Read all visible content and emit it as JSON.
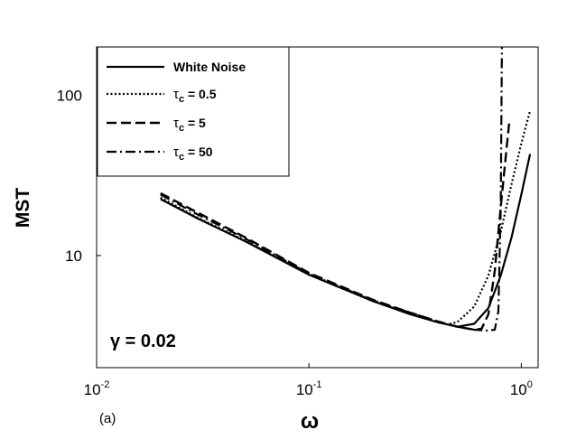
{
  "chart_data": {
    "type": "line",
    "xlabel": "ω",
    "ylabel": "MST",
    "xscale": "log",
    "yscale": "log",
    "xlim": [
      0.01,
      1.2
    ],
    "ylim": [
      2,
      200
    ],
    "x_ticks": [
      {
        "value": 0.01,
        "base": "10",
        "exp": "-2"
      },
      {
        "value": 0.1,
        "base": "10",
        "exp": "-1"
      },
      {
        "value": 1,
        "base": "10",
        "exp": "0"
      }
    ],
    "y_ticks": [
      {
        "value": 10,
        "label": "10"
      },
      {
        "value": 100,
        "label": "100"
      }
    ],
    "grid": false,
    "legend_position": "top-left",
    "annotation": "γ = 0.02",
    "panel_label": "(a)",
    "series": [
      {
        "legend": "White Noise",
        "style": "solid",
        "points": [
          [
            0.02,
            22.5
          ],
          [
            0.03,
            17
          ],
          [
            0.05,
            12.3
          ],
          [
            0.1,
            7.6
          ],
          [
            0.2,
            5.2
          ],
          [
            0.3,
            4.3
          ],
          [
            0.4,
            3.85
          ],
          [
            0.5,
            3.6
          ],
          [
            0.6,
            3.75
          ],
          [
            0.7,
            4.7
          ],
          [
            0.8,
            7.5
          ],
          [
            0.9,
            13
          ],
          [
            1.0,
            24
          ],
          [
            1.1,
            43
          ]
        ]
      },
      {
        "legend_symbol": "τ",
        "legend_sub": "c",
        "legend_rest": " = 0.5",
        "style": "dotted",
        "points": [
          [
            0.02,
            23
          ],
          [
            0.03,
            17.2
          ],
          [
            0.05,
            12.4
          ],
          [
            0.1,
            7.6
          ],
          [
            0.2,
            5.2
          ],
          [
            0.3,
            4.35
          ],
          [
            0.4,
            3.85
          ],
          [
            0.45,
            3.72
          ],
          [
            0.5,
            3.85
          ],
          [
            0.6,
            4.8
          ],
          [
            0.7,
            7.5
          ],
          [
            0.8,
            14
          ],
          [
            0.9,
            28
          ],
          [
            1.0,
            50
          ],
          [
            1.1,
            80
          ]
        ]
      },
      {
        "legend_symbol": "τ",
        "legend_sub": "c",
        "legend_rest": " = 5",
        "style": "dashed",
        "points": [
          [
            0.02,
            24.5
          ],
          [
            0.03,
            18.5
          ],
          [
            0.05,
            13
          ],
          [
            0.1,
            7.8
          ],
          [
            0.2,
            5.3
          ],
          [
            0.3,
            4.4
          ],
          [
            0.4,
            3.9
          ],
          [
            0.5,
            3.6
          ],
          [
            0.6,
            3.45
          ],
          [
            0.65,
            3.5
          ],
          [
            0.7,
            4.3
          ],
          [
            0.75,
            8
          ],
          [
            0.8,
            20
          ],
          [
            0.85,
            45
          ],
          [
            0.88,
            70
          ]
        ]
      },
      {
        "legend_symbol": "τ",
        "legend_sub": "c",
        "legend_rest": " = 50",
        "style": "dashdot",
        "points": [
          [
            0.02,
            24
          ],
          [
            0.03,
            18
          ],
          [
            0.05,
            12.8
          ],
          [
            0.1,
            7.7
          ],
          [
            0.2,
            5.25
          ],
          [
            0.3,
            4.4
          ],
          [
            0.4,
            3.9
          ],
          [
            0.5,
            3.6
          ],
          [
            0.6,
            3.45
          ],
          [
            0.7,
            3.4
          ],
          [
            0.75,
            3.45
          ],
          [
            0.78,
            4.5
          ],
          [
            0.8,
            20
          ],
          [
            0.81,
            200
          ]
        ]
      }
    ]
  }
}
